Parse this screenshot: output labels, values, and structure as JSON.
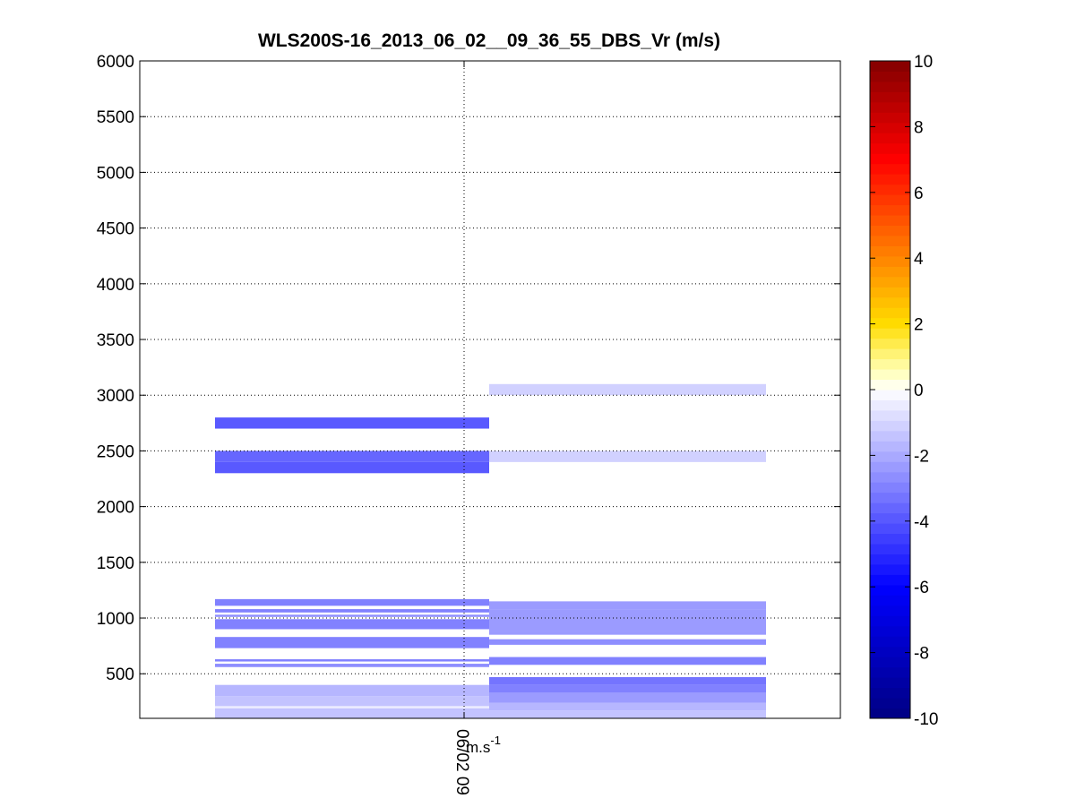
{
  "chart_data": {
    "type": "heatmap",
    "title": "WLS200S-16_2013_06_02__09_36_55_DBS_Vr (m/s)",
    "ylim": [
      100,
      6000
    ],
    "yticks": [
      "500",
      "1000",
      "1500",
      "2000",
      "2500",
      "3000",
      "3500",
      "4000",
      "4500",
      "5000",
      "5500",
      "6000"
    ],
    "xtick_label": "06/02 09",
    "xlabel_unit": "m.s-1",
    "grid": true,
    "colorbar": {
      "range": [
        -10,
        10
      ],
      "ticks": [
        "-10",
        "-8",
        "-6",
        "-4",
        "-2",
        "0",
        "2",
        "4",
        "6",
        "8",
        "10"
      ],
      "colormap": "blue-white-red"
    },
    "columns": [
      {
        "name": "col1",
        "cells": [
          {
            "y0": 100,
            "y1": 190,
            "v": -1.3
          },
          {
            "y0": 190,
            "y1": 210,
            "v": -0.4
          },
          {
            "y0": 210,
            "y1": 300,
            "v": -1.4
          },
          {
            "y0": 300,
            "y1": 400,
            "v": -1.6
          },
          {
            "y0": 560,
            "y1": 590,
            "v": -2.8
          },
          {
            "y0": 610,
            "y1": 630,
            "v": -3.0
          },
          {
            "y0": 730,
            "y1": 830,
            "v": -3.0
          },
          {
            "y0": 900,
            "y1": 990,
            "v": -2.9
          },
          {
            "y0": 1010,
            "y1": 1030,
            "v": -2.7
          },
          {
            "y0": 1050,
            "y1": 1080,
            "v": -3.1
          },
          {
            "y0": 1110,
            "y1": 1170,
            "v": -3.0
          },
          {
            "y0": 2300,
            "y1": 2400,
            "v": -3.9
          },
          {
            "y0": 2400,
            "y1": 2500,
            "v": -3.6
          },
          {
            "y0": 2700,
            "y1": 2800,
            "v": -4.0
          }
        ]
      },
      {
        "name": "col2",
        "cells": [
          {
            "y0": 100,
            "y1": 170,
            "v": -1.4
          },
          {
            "y0": 170,
            "y1": 240,
            "v": -1.8
          },
          {
            "y0": 240,
            "y1": 330,
            "v": -2.3
          },
          {
            "y0": 330,
            "y1": 400,
            "v": -2.9
          },
          {
            "y0": 400,
            "y1": 470,
            "v": -3.3
          },
          {
            "y0": 580,
            "y1": 650,
            "v": -3.0
          },
          {
            "y0": 760,
            "y1": 810,
            "v": -2.6
          },
          {
            "y0": 850,
            "y1": 880,
            "v": -2.4
          },
          {
            "y0": 880,
            "y1": 1000,
            "v": -2.2
          },
          {
            "y0": 1000,
            "y1": 1080,
            "v": -2.5
          },
          {
            "y0": 1080,
            "y1": 1150,
            "v": -2.3
          },
          {
            "y0": 2400,
            "y1": 2500,
            "v": -1.2
          },
          {
            "y0": 3000,
            "y1": 3100,
            "v": -1.2
          }
        ]
      }
    ]
  }
}
